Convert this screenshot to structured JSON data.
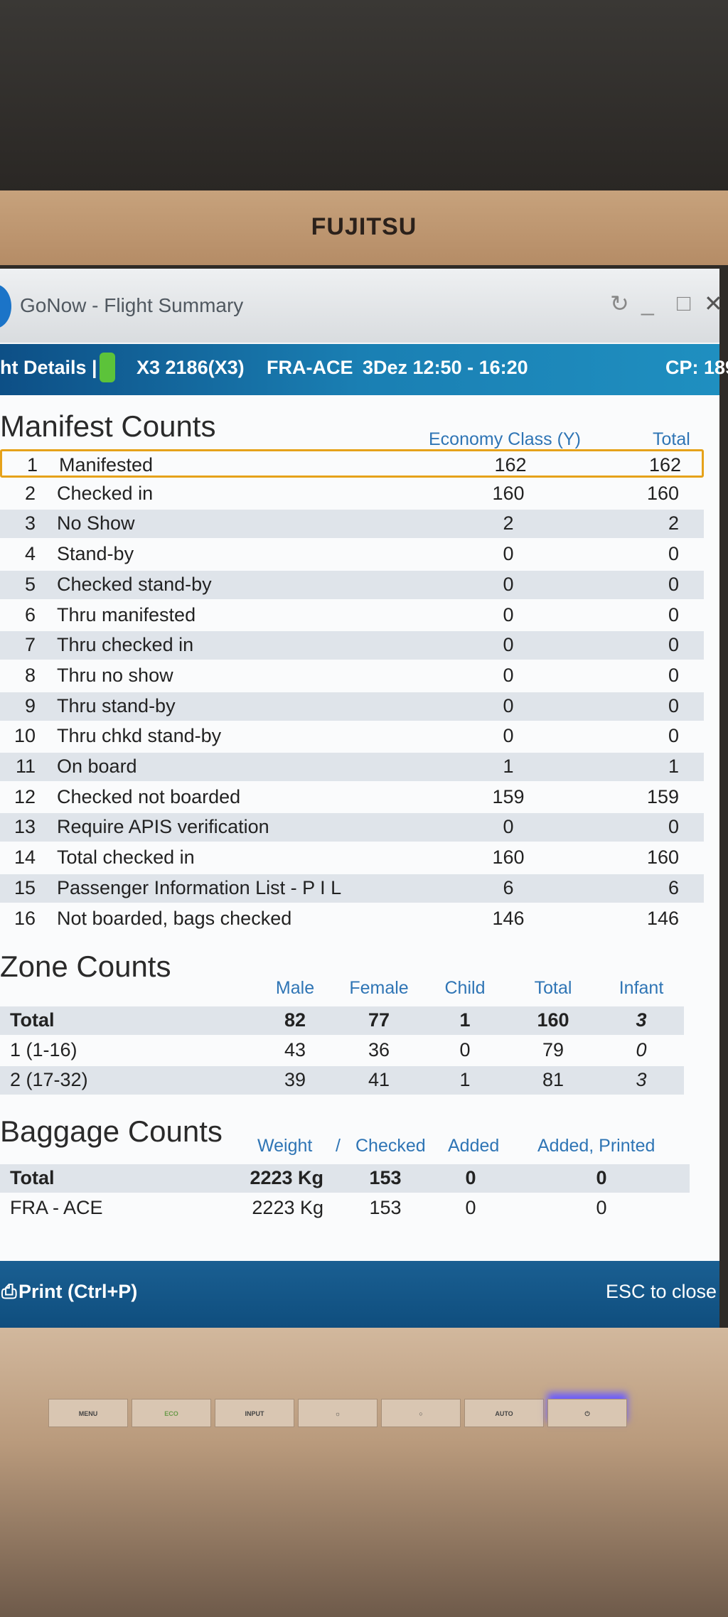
{
  "monitor": {
    "brand": "FUJITSU",
    "buttons": [
      "MENU",
      "ECO",
      "INPUT",
      "☼",
      "○",
      "AUTO",
      "⏻"
    ]
  },
  "window": {
    "title": "GoNow - Flight Summary"
  },
  "flight_bar": {
    "tab": "ht Details |",
    "flight": "X3 2186(X3)",
    "route": "FRA-ACE",
    "date_time": "3Dez 12:50 - 16:20",
    "cp": "CP: 189"
  },
  "manifest": {
    "title": "Manifest Counts",
    "columns": [
      "Economy Class (Y)",
      "Total"
    ],
    "rows": [
      {
        "n": "1",
        "label": "Manifested",
        "y": "162",
        "total": "162"
      },
      {
        "n": "2",
        "label": "Checked in",
        "y": "160",
        "total": "160"
      },
      {
        "n": "3",
        "label": "No Show",
        "y": "2",
        "total": "2"
      },
      {
        "n": "4",
        "label": "Stand-by",
        "y": "0",
        "total": "0"
      },
      {
        "n": "5",
        "label": "Checked stand-by",
        "y": "0",
        "total": "0"
      },
      {
        "n": "6",
        "label": "Thru manifested",
        "y": "0",
        "total": "0"
      },
      {
        "n": "7",
        "label": "Thru checked in",
        "y": "0",
        "total": "0"
      },
      {
        "n": "8",
        "label": "Thru no show",
        "y": "0",
        "total": "0"
      },
      {
        "n": "9",
        "label": "Thru stand-by",
        "y": "0",
        "total": "0"
      },
      {
        "n": "10",
        "label": "Thru chkd stand-by",
        "y": "0",
        "total": "0"
      },
      {
        "n": "11",
        "label": "On board",
        "y": "1",
        "total": "1"
      },
      {
        "n": "12",
        "label": "Checked not boarded",
        "y": "159",
        "total": "159"
      },
      {
        "n": "13",
        "label": "Require APIS verification",
        "y": "0",
        "total": "0"
      },
      {
        "n": "14",
        "label": "Total checked in",
        "y": "160",
        "total": "160"
      },
      {
        "n": "15",
        "label": "Passenger Information List - P I L",
        "y": "6",
        "total": "6"
      },
      {
        "n": "16",
        "label": "Not boarded, bags checked",
        "y": "146",
        "total": "146"
      }
    ]
  },
  "zone": {
    "title": "Zone Counts",
    "columns": [
      "Male",
      "Female",
      "Child",
      "Total",
      "Infant"
    ],
    "rows": [
      {
        "label": "Total",
        "values": [
          "82",
          "77",
          "1",
          "160",
          "3"
        ]
      },
      {
        "label": "1 (1-16)",
        "values": [
          "43",
          "36",
          "0",
          "79",
          "0"
        ]
      },
      {
        "label": "2 (17-32)",
        "values": [
          "39",
          "41",
          "1",
          "81",
          "3"
        ]
      }
    ]
  },
  "baggage": {
    "title": "Baggage Counts",
    "columns": [
      "Weight",
      "/",
      "Checked",
      "Added",
      "Added, Printed"
    ],
    "rows": [
      {
        "label": "Total",
        "values": [
          "2223 Kg",
          "153",
          "0",
          "0"
        ]
      },
      {
        "label": "FRA - ACE",
        "values": [
          "2223 Kg",
          "153",
          "0",
          "0"
        ]
      }
    ]
  },
  "footer": {
    "print": "Print (Ctrl+P)",
    "close": "ESC to close"
  },
  "colors": {
    "accent_blue": "#1a7fb3",
    "highlight": "#e6a21a",
    "header_text": "#2f75b5"
  }
}
